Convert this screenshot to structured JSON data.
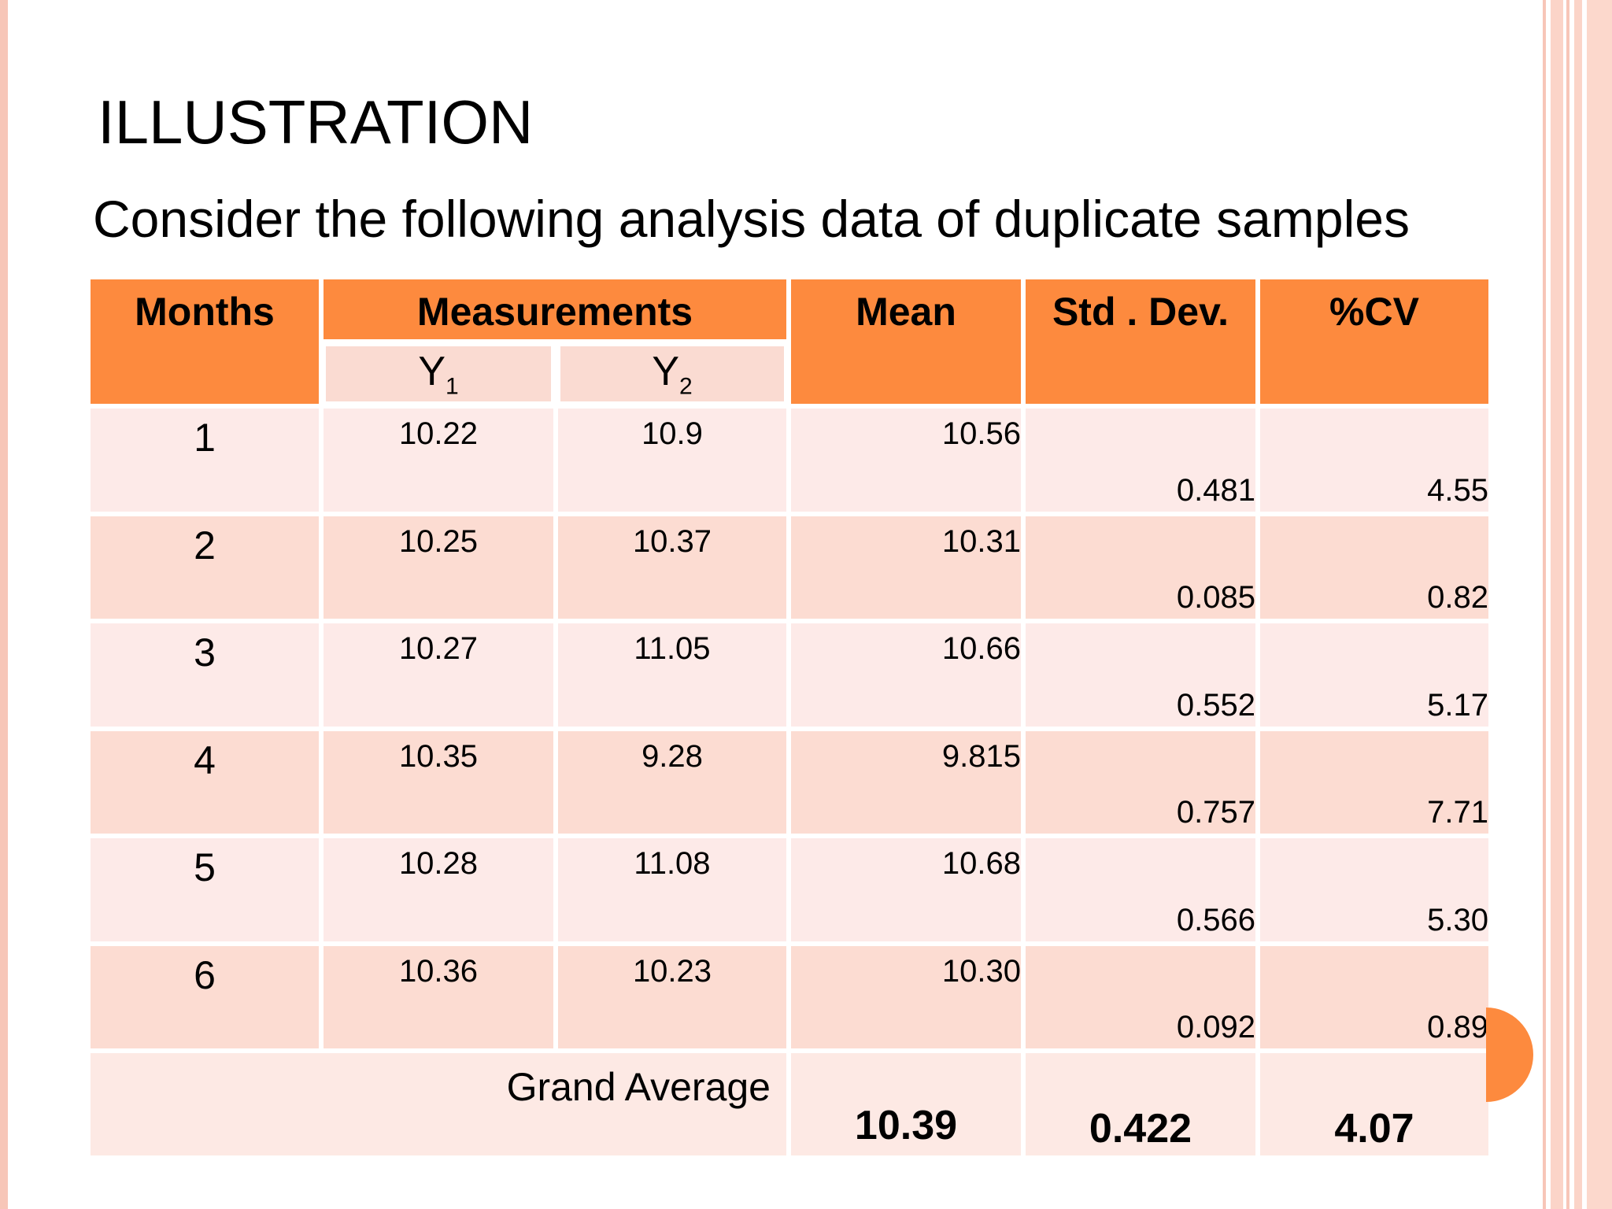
{
  "slide": {
    "title": "ILLUSTRATION",
    "subtitle": "Consider the following analysis data of duplicate samples"
  },
  "table": {
    "headers": {
      "months": "Months",
      "measurements": "Measurements",
      "y1": "Y",
      "y1_sub": "1",
      "y2": "Y",
      "y2_sub": "2",
      "mean": "Mean",
      "std_dev": "Std . Dev.",
      "cv": "%CV"
    },
    "rows": [
      {
        "month": "1",
        "y1": "10.22",
        "y2": "10.9",
        "mean": "10.56",
        "std_dev": "0.481",
        "cv": "4.55"
      },
      {
        "month": "2",
        "y1": "10.25",
        "y2": "10.37",
        "mean": "10.31",
        "std_dev": "0.085",
        "cv": "0.82"
      },
      {
        "month": "3",
        "y1": "10.27",
        "y2": "11.05",
        "mean": "10.66",
        "std_dev": "0.552",
        "cv": "5.17"
      },
      {
        "month": "4",
        "y1": "10.35",
        "y2": "9.28",
        "mean": "9.815",
        "std_dev": "0.757",
        "cv": "7.71"
      },
      {
        "month": "5",
        "y1": "10.28",
        "y2": "11.08",
        "mean": "10.68",
        "std_dev": "0.566",
        "cv": "5.30"
      },
      {
        "month": "6",
        "y1": "10.36",
        "y2": "10.23",
        "mean": "10.30",
        "std_dev": "0.092",
        "cv": "0.89"
      }
    ],
    "grand_average": {
      "label": "Grand Average",
      "mean": "10.39",
      "std_dev": "0.422",
      "cv": "4.07"
    }
  },
  "colors": {
    "header_orange": "#fd8a3e",
    "row_light": "#fdeae8",
    "row_dark": "#fcdcd2",
    "border_pink": "#f7c6b8"
  }
}
